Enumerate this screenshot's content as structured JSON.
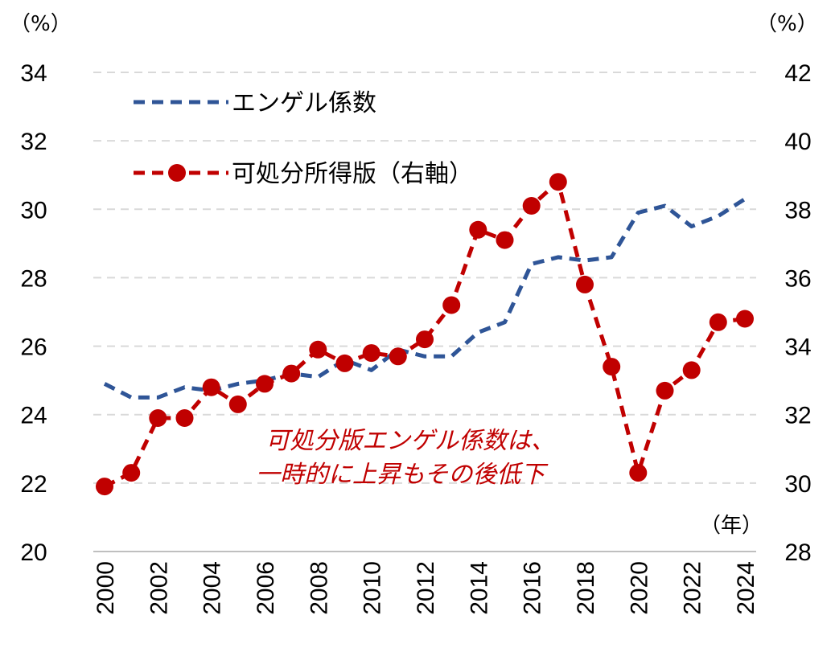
{
  "chart_data": {
    "type": "line",
    "left_axis": {
      "unit_label": "（%）",
      "ylim": [
        20,
        34
      ],
      "ticks": [
        "20",
        "22",
        "24",
        "26",
        "28",
        "30",
        "32",
        "34"
      ]
    },
    "right_axis": {
      "unit_label": "（%）",
      "ylim": [
        28,
        42
      ],
      "ticks": [
        "28",
        "30",
        "32",
        "34",
        "36",
        "38",
        "40",
        "42"
      ]
    },
    "x_unit_label": "（年）",
    "x_ticks": [
      "2000",
      "2002",
      "2004",
      "2006",
      "2008",
      "2010",
      "2012",
      "2014",
      "2016",
      "2018",
      "2020",
      "2022",
      "2024"
    ],
    "x": [
      2000,
      2001,
      2002,
      2003,
      2004,
      2005,
      2006,
      2007,
      2008,
      2009,
      2010,
      2011,
      2012,
      2013,
      2014,
      2015,
      2016,
      2017,
      2018,
      2019,
      2020,
      2021,
      2022,
      2023,
      2024
    ],
    "grid": true,
    "legend_position": "top-left",
    "series": [
      {
        "name": "エンゲル係数",
        "axis": "left",
        "color": "#2f5597",
        "style": "dashed",
        "marker": "none",
        "values": [
          24.9,
          24.5,
          24.5,
          24.8,
          24.7,
          24.9,
          25.0,
          25.2,
          25.1,
          25.6,
          25.3,
          25.9,
          25.7,
          25.7,
          26.4,
          26.7,
          28.4,
          28.6,
          28.5,
          28.6,
          29.9,
          30.1,
          29.5,
          29.8,
          30.3
        ]
      },
      {
        "name": "可処分所得版（右軸）",
        "axis": "right",
        "color": "#c00000",
        "style": "dashed",
        "marker": "circle",
        "values": [
          29.9,
          30.3,
          31.9,
          31.9,
          32.8,
          32.3,
          32.9,
          33.2,
          33.9,
          33.5,
          33.8,
          33.7,
          34.2,
          35.2,
          37.4,
          37.1,
          38.1,
          38.8,
          35.8,
          33.4,
          30.3,
          32.7,
          33.3,
          34.7,
          34.8
        ]
      }
    ],
    "annotation": [
      "可処分版エンゲル係数は、",
      "一時的に上昇もその後低下"
    ]
  }
}
